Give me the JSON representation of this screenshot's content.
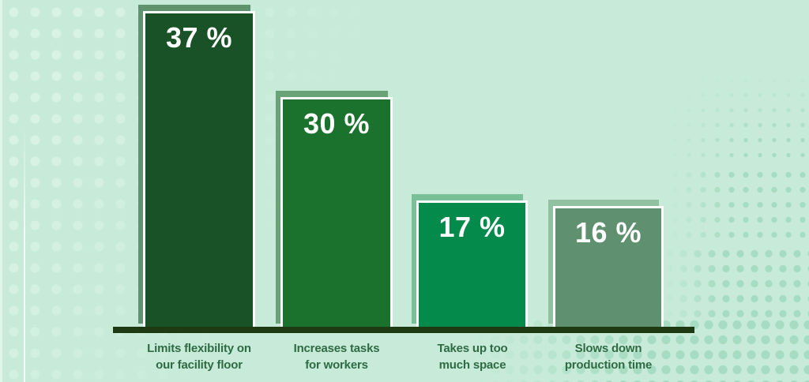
{
  "colors": {
    "background": "#c7ebd8",
    "left_dots": "#d8f2e4",
    "right_dots": "#a6dcc1",
    "axis": "#1e3a12",
    "category_text": "#2e6b43",
    "value_text": "#ffffff",
    "bar_border": "#ffffff"
  },
  "bars": [
    {
      "value": 37,
      "value_label": "37 %",
      "lines": [
        "Limits flexibility on",
        "our facility floor"
      ],
      "fill": "#1a5227",
      "shadow": "#5f936d"
    },
    {
      "value": 30,
      "value_label": "30 %",
      "lines": [
        "Increases tasks",
        "for workers"
      ],
      "fill": "#1a722d",
      "shadow": "#68a276"
    },
    {
      "value": 17,
      "value_label": "17 %",
      "lines": [
        "Takes up too",
        "much space"
      ],
      "fill": "#048a4a",
      "shadow": "#79c098"
    },
    {
      "value": 16,
      "value_label": "16 %",
      "lines": [
        "Slows down",
        "production time"
      ],
      "fill": "#5f9170",
      "shadow": "#92c1a2"
    }
  ],
  "chart_data": {
    "type": "bar",
    "categories": [
      "Limits flexibility on our facility floor",
      "Increases tasks for workers",
      "Takes up too much space",
      "Slows down production time"
    ],
    "values": [
      37,
      30,
      17,
      16
    ],
    "unit": "%",
    "value_labels": [
      "37 %",
      "30 %",
      "17 %",
      "16 %"
    ],
    "title": "",
    "xlabel": "",
    "ylabel": "",
    "ylim": [
      0,
      40
    ],
    "grid": false,
    "legend": false,
    "orientation": "vertical",
    "bar_colors": [
      "#1a5227",
      "#1a722d",
      "#048a4a",
      "#5f9170"
    ],
    "bar_shadow_colors": [
      "#5f936d",
      "#68a276",
      "#79c098",
      "#92c1a2"
    ],
    "background": "#c7ebd8"
  }
}
